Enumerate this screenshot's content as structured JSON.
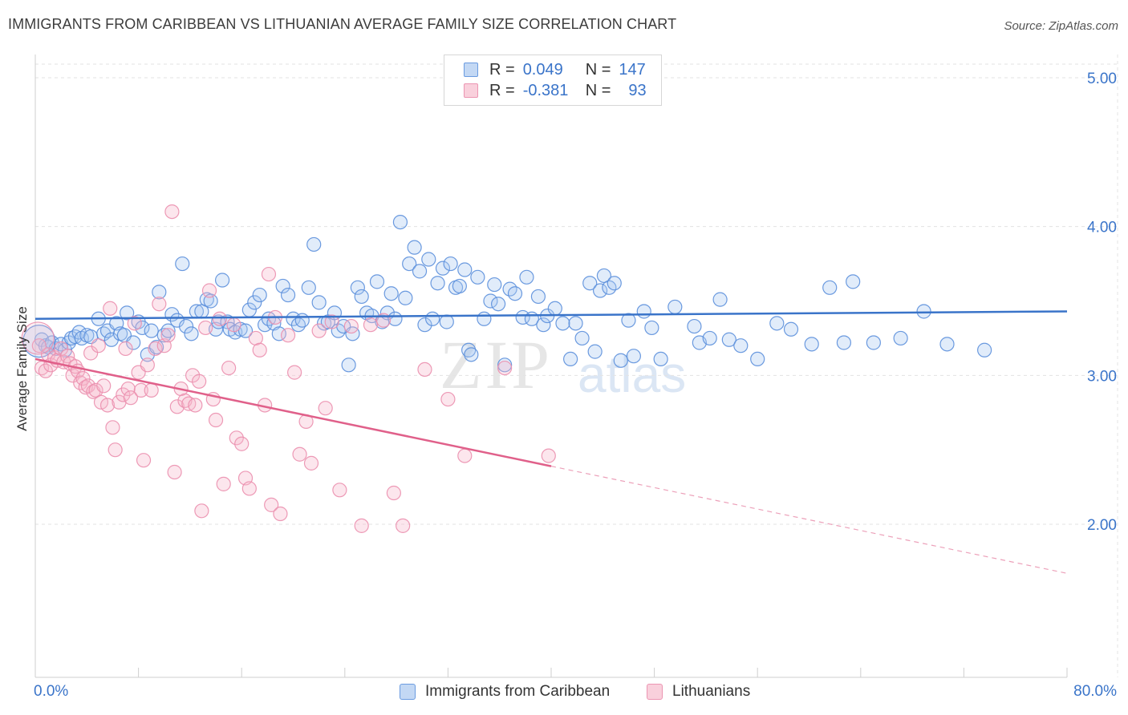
{
  "header": {
    "title": "IMMIGRANTS FROM CARIBBEAN VS LITHUANIAN AVERAGE FAMILY SIZE CORRELATION CHART",
    "source": "Source: ZipAtlas.com"
  },
  "watermark": {
    "zip": "ZIP",
    "atlas": "atlas"
  },
  "legend_top": {
    "r_label": "R =",
    "n_label": "N =",
    "rows": [
      {
        "r_value": "0.049",
        "n_value": "147",
        "color": "#a8c8f0"
      },
      {
        "r_value": "-0.381",
        "n_value": "93",
        "color": "#f5b8cb"
      }
    ]
  },
  "legend_bottom": {
    "items": [
      {
        "label": "Immigrants from Caribbean",
        "color": "#a8c8f0"
      },
      {
        "label": "Lithuanians",
        "color": "#f5b8cb"
      }
    ]
  },
  "chart_data": {
    "type": "scatter",
    "title": "IMMIGRANTS FROM CARIBBEAN VS LITHUANIAN AVERAGE FAMILY SIZE CORRELATION CHART",
    "xlabel": "",
    "ylabel": "Average Family Size",
    "xlim": [
      0,
      80
    ],
    "ylim": [
      1.2,
      5.1
    ],
    "x_tick_labels": [
      "0.0%",
      "80.0%"
    ],
    "y_ticks": [
      2.0,
      3.0,
      4.0,
      5.0
    ],
    "y_tick_labels": [
      "2.00",
      "3.00",
      "4.00",
      "5.00"
    ],
    "grid": true,
    "legend_position": "top-center",
    "colors": {
      "blue": "#5b8fdb",
      "blue_fill": "#a8c8f0",
      "blue_line": "#3a74c9",
      "pink": "#eb8fae",
      "pink_fill": "#f5b8cb",
      "pink_line": "#e0608a"
    },
    "series": [
      {
        "name": "Immigrants from Caribbean",
        "color": "#5b8fdb",
        "trend": {
          "x": [
            0,
            80
          ],
          "y": [
            3.38,
            3.43
          ],
          "solid_until": 80
        },
        "points": [
          [
            0.5,
            3.24
          ],
          [
            0.8,
            3.2
          ],
          [
            1.0,
            3.19
          ],
          [
            1.3,
            3.22
          ],
          [
            1.6,
            3.18
          ],
          [
            2.0,
            3.21
          ],
          [
            2.3,
            3.17
          ],
          [
            2.6,
            3.22
          ],
          [
            2.8,
            3.25
          ],
          [
            3.1,
            3.26
          ],
          [
            3.4,
            3.29
          ],
          [
            3.6,
            3.25
          ],
          [
            4.0,
            3.27
          ],
          [
            4.3,
            3.26
          ],
          [
            4.9,
            3.38
          ],
          [
            5.3,
            3.28
          ],
          [
            5.6,
            3.3
          ],
          [
            5.9,
            3.24
          ],
          [
            6.3,
            3.35
          ],
          [
            6.6,
            3.28
          ],
          [
            6.9,
            3.27
          ],
          [
            7.1,
            3.42
          ],
          [
            7.6,
            3.22
          ],
          [
            8.0,
            3.36
          ],
          [
            8.3,
            3.32
          ],
          [
            8.7,
            3.14
          ],
          [
            9.0,
            3.3
          ],
          [
            9.4,
            3.19
          ],
          [
            9.6,
            3.56
          ],
          [
            10.0,
            3.27
          ],
          [
            10.3,
            3.3
          ],
          [
            10.6,
            3.41
          ],
          [
            11.0,
            3.37
          ],
          [
            11.4,
            3.75
          ],
          [
            11.7,
            3.33
          ],
          [
            12.1,
            3.28
          ],
          [
            12.5,
            3.43
          ],
          [
            12.9,
            3.43
          ],
          [
            13.3,
            3.51
          ],
          [
            13.6,
            3.5
          ],
          [
            14.0,
            3.31
          ],
          [
            14.2,
            3.36
          ],
          [
            14.5,
            3.64
          ],
          [
            14.9,
            3.36
          ],
          [
            15.1,
            3.31
          ],
          [
            15.5,
            3.29
          ],
          [
            15.9,
            3.31
          ],
          [
            16.3,
            3.3
          ],
          [
            16.6,
            3.44
          ],
          [
            17.0,
            3.49
          ],
          [
            17.4,
            3.54
          ],
          [
            17.8,
            3.34
          ],
          [
            18.1,
            3.38
          ],
          [
            18.5,
            3.35
          ],
          [
            18.9,
            3.28
          ],
          [
            19.2,
            3.6
          ],
          [
            19.6,
            3.54
          ],
          [
            20.0,
            3.38
          ],
          [
            20.4,
            3.34
          ],
          [
            20.7,
            3.37
          ],
          [
            21.2,
            3.59
          ],
          [
            21.6,
            3.88
          ],
          [
            22.0,
            3.49
          ],
          [
            22.4,
            3.35
          ],
          [
            22.7,
            3.36
          ],
          [
            23.2,
            3.42
          ],
          [
            23.5,
            3.3
          ],
          [
            23.9,
            3.33
          ],
          [
            24.3,
            3.07
          ],
          [
            24.6,
            3.28
          ],
          [
            25.0,
            3.59
          ],
          [
            25.3,
            3.53
          ],
          [
            25.7,
            3.42
          ],
          [
            26.1,
            3.4
          ],
          [
            26.5,
            3.63
          ],
          [
            26.9,
            3.36
          ],
          [
            27.3,
            3.42
          ],
          [
            27.6,
            3.55
          ],
          [
            27.9,
            3.38
          ],
          [
            28.3,
            4.03
          ],
          [
            28.7,
            3.52
          ],
          [
            29.0,
            3.75
          ],
          [
            29.4,
            3.86
          ],
          [
            29.8,
            3.7
          ],
          [
            30.2,
            3.34
          ],
          [
            30.5,
            3.78
          ],
          [
            30.8,
            3.38
          ],
          [
            31.2,
            3.62
          ],
          [
            31.6,
            3.72
          ],
          [
            31.9,
            3.36
          ],
          [
            32.2,
            3.75
          ],
          [
            32.6,
            3.59
          ],
          [
            32.9,
            3.6
          ],
          [
            33.3,
            3.71
          ],
          [
            33.6,
            3.17
          ],
          [
            33.8,
            3.14
          ],
          [
            34.3,
            3.66
          ],
          [
            34.8,
            3.38
          ],
          [
            35.3,
            3.5
          ],
          [
            35.6,
            3.61
          ],
          [
            35.9,
            3.48
          ],
          [
            36.4,
            3.07
          ],
          [
            36.8,
            3.58
          ],
          [
            37.2,
            3.55
          ],
          [
            37.8,
            3.39
          ],
          [
            38.1,
            3.66
          ],
          [
            38.5,
            3.38
          ],
          [
            39.0,
            3.53
          ],
          [
            39.4,
            3.34
          ],
          [
            39.7,
            3.4
          ],
          [
            40.3,
            3.45
          ],
          [
            40.9,
            3.35
          ],
          [
            41.5,
            3.11
          ],
          [
            41.9,
            3.35
          ],
          [
            42.4,
            3.25
          ],
          [
            43.0,
            3.62
          ],
          [
            43.4,
            3.16
          ],
          [
            43.8,
            3.57
          ],
          [
            44.1,
            3.67
          ],
          [
            44.5,
            3.59
          ],
          [
            44.9,
            3.62
          ],
          [
            45.4,
            3.1
          ],
          [
            46.0,
            3.37
          ],
          [
            46.4,
            3.13
          ],
          [
            47.2,
            3.43
          ],
          [
            47.8,
            3.32
          ],
          [
            48.5,
            3.11
          ],
          [
            49.6,
            3.46
          ],
          [
            51.1,
            3.33
          ],
          [
            51.5,
            3.22
          ],
          [
            52.3,
            3.25
          ],
          [
            53.1,
            3.51
          ],
          [
            53.8,
            3.24
          ],
          [
            54.7,
            3.2
          ],
          [
            56.0,
            3.11
          ],
          [
            57.5,
            3.35
          ],
          [
            58.6,
            3.31
          ],
          [
            60.2,
            3.21
          ],
          [
            61.6,
            3.59
          ],
          [
            62.7,
            3.22
          ],
          [
            63.4,
            3.63
          ],
          [
            65.0,
            3.22
          ],
          [
            67.1,
            3.25
          ],
          [
            68.9,
            3.43
          ],
          [
            70.7,
            3.21
          ],
          [
            73.6,
            3.17
          ],
          [
            0.3,
            3.23
          ]
        ]
      },
      {
        "name": "Lithuanians",
        "color": "#eb8fae",
        "trend": {
          "x": [
            0,
            80
          ],
          "y": [
            3.11,
            1.67
          ],
          "solid_until": 40
        },
        "points": [
          [
            0.3,
            3.2
          ],
          [
            0.5,
            3.05
          ],
          [
            0.8,
            3.03
          ],
          [
            1.0,
            3.14
          ],
          [
            1.2,
            3.07
          ],
          [
            1.5,
            3.12
          ],
          [
            1.7,
            3.1
          ],
          [
            2.0,
            3.18
          ],
          [
            2.2,
            3.09
          ],
          [
            2.5,
            3.13
          ],
          [
            2.7,
            3.08
          ],
          [
            2.9,
            3.0
          ],
          [
            3.1,
            3.06
          ],
          [
            3.3,
            3.03
          ],
          [
            3.5,
            2.95
          ],
          [
            3.7,
            2.98
          ],
          [
            3.9,
            2.92
          ],
          [
            4.1,
            2.93
          ],
          [
            4.3,
            3.15
          ],
          [
            4.5,
            2.89
          ],
          [
            4.7,
            2.9
          ],
          [
            4.9,
            3.2
          ],
          [
            5.1,
            2.82
          ],
          [
            5.3,
            2.93
          ],
          [
            5.6,
            2.8
          ],
          [
            5.8,
            3.45
          ],
          [
            6.0,
            2.65
          ],
          [
            6.2,
            2.5
          ],
          [
            6.5,
            2.82
          ],
          [
            6.8,
            2.87
          ],
          [
            7.0,
            3.18
          ],
          [
            7.2,
            2.91
          ],
          [
            7.4,
            2.85
          ],
          [
            7.7,
            3.35
          ],
          [
            8.0,
            3.02
          ],
          [
            8.2,
            2.9
          ],
          [
            8.4,
            2.43
          ],
          [
            8.7,
            3.07
          ],
          [
            9.0,
            2.9
          ],
          [
            9.3,
            3.18
          ],
          [
            9.6,
            3.48
          ],
          [
            10.0,
            3.2
          ],
          [
            10.3,
            3.27
          ],
          [
            10.6,
            4.1
          ],
          [
            10.8,
            2.35
          ],
          [
            11.0,
            2.79
          ],
          [
            11.3,
            2.91
          ],
          [
            11.6,
            2.83
          ],
          [
            11.9,
            2.81
          ],
          [
            12.2,
            3.0
          ],
          [
            12.4,
            2.8
          ],
          [
            12.7,
            2.96
          ],
          [
            12.9,
            2.09
          ],
          [
            13.2,
            3.32
          ],
          [
            13.5,
            3.57
          ],
          [
            13.8,
            2.84
          ],
          [
            14.0,
            2.7
          ],
          [
            14.3,
            3.38
          ],
          [
            14.6,
            2.27
          ],
          [
            15.0,
            3.05
          ],
          [
            15.4,
            3.34
          ],
          [
            15.6,
            2.58
          ],
          [
            16.0,
            2.54
          ],
          [
            16.3,
            2.31
          ],
          [
            16.6,
            2.24
          ],
          [
            17.1,
            3.25
          ],
          [
            17.4,
            3.17
          ],
          [
            17.8,
            2.8
          ],
          [
            18.1,
            3.68
          ],
          [
            18.3,
            2.13
          ],
          [
            18.6,
            3.39
          ],
          [
            19.0,
            2.07
          ],
          [
            19.6,
            3.27
          ],
          [
            20.1,
            3.02
          ],
          [
            20.5,
            2.47
          ],
          [
            21.0,
            2.69
          ],
          [
            21.4,
            2.41
          ],
          [
            22.0,
            3.3
          ],
          [
            22.5,
            2.78
          ],
          [
            23.0,
            3.36
          ],
          [
            23.6,
            2.23
          ],
          [
            24.5,
            3.33
          ],
          [
            25.3,
            1.99
          ],
          [
            26.0,
            3.34
          ],
          [
            27.0,
            3.37
          ],
          [
            27.8,
            2.21
          ],
          [
            28.5,
            1.99
          ],
          [
            30.2,
            3.04
          ],
          [
            32.0,
            2.84
          ],
          [
            33.3,
            2.46
          ],
          [
            36.4,
            3.05
          ],
          [
            39.8,
            2.46
          ],
          [
            0.2,
            3.25
          ]
        ]
      }
    ]
  }
}
